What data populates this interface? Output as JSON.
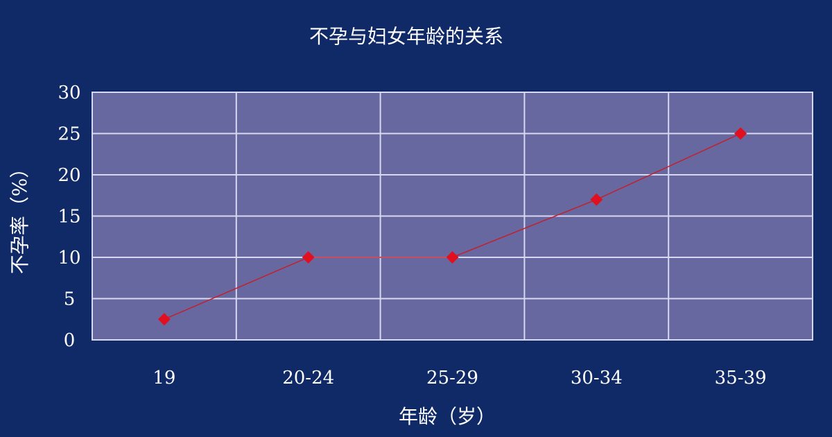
{
  "chart_data": {
    "type": "line",
    "title": "不孕与妇女年龄的关系",
    "xlabel": "年龄（岁）",
    "ylabel": "不孕率（%）",
    "categories": [
      "19",
      "20-24",
      "25-29",
      "30-34",
      "35-39"
    ],
    "values": [
      2.5,
      10,
      10,
      17,
      25
    ],
    "ylim": [
      0,
      30
    ],
    "yticks": [
      0,
      5,
      10,
      15,
      20,
      25,
      30
    ],
    "grid": true,
    "legend": "none",
    "colors": {
      "background": "#102a68",
      "plot": "#6868a0",
      "grid": "#d8d8f0",
      "line": "#c02030",
      "marker": "#e01020"
    }
  }
}
